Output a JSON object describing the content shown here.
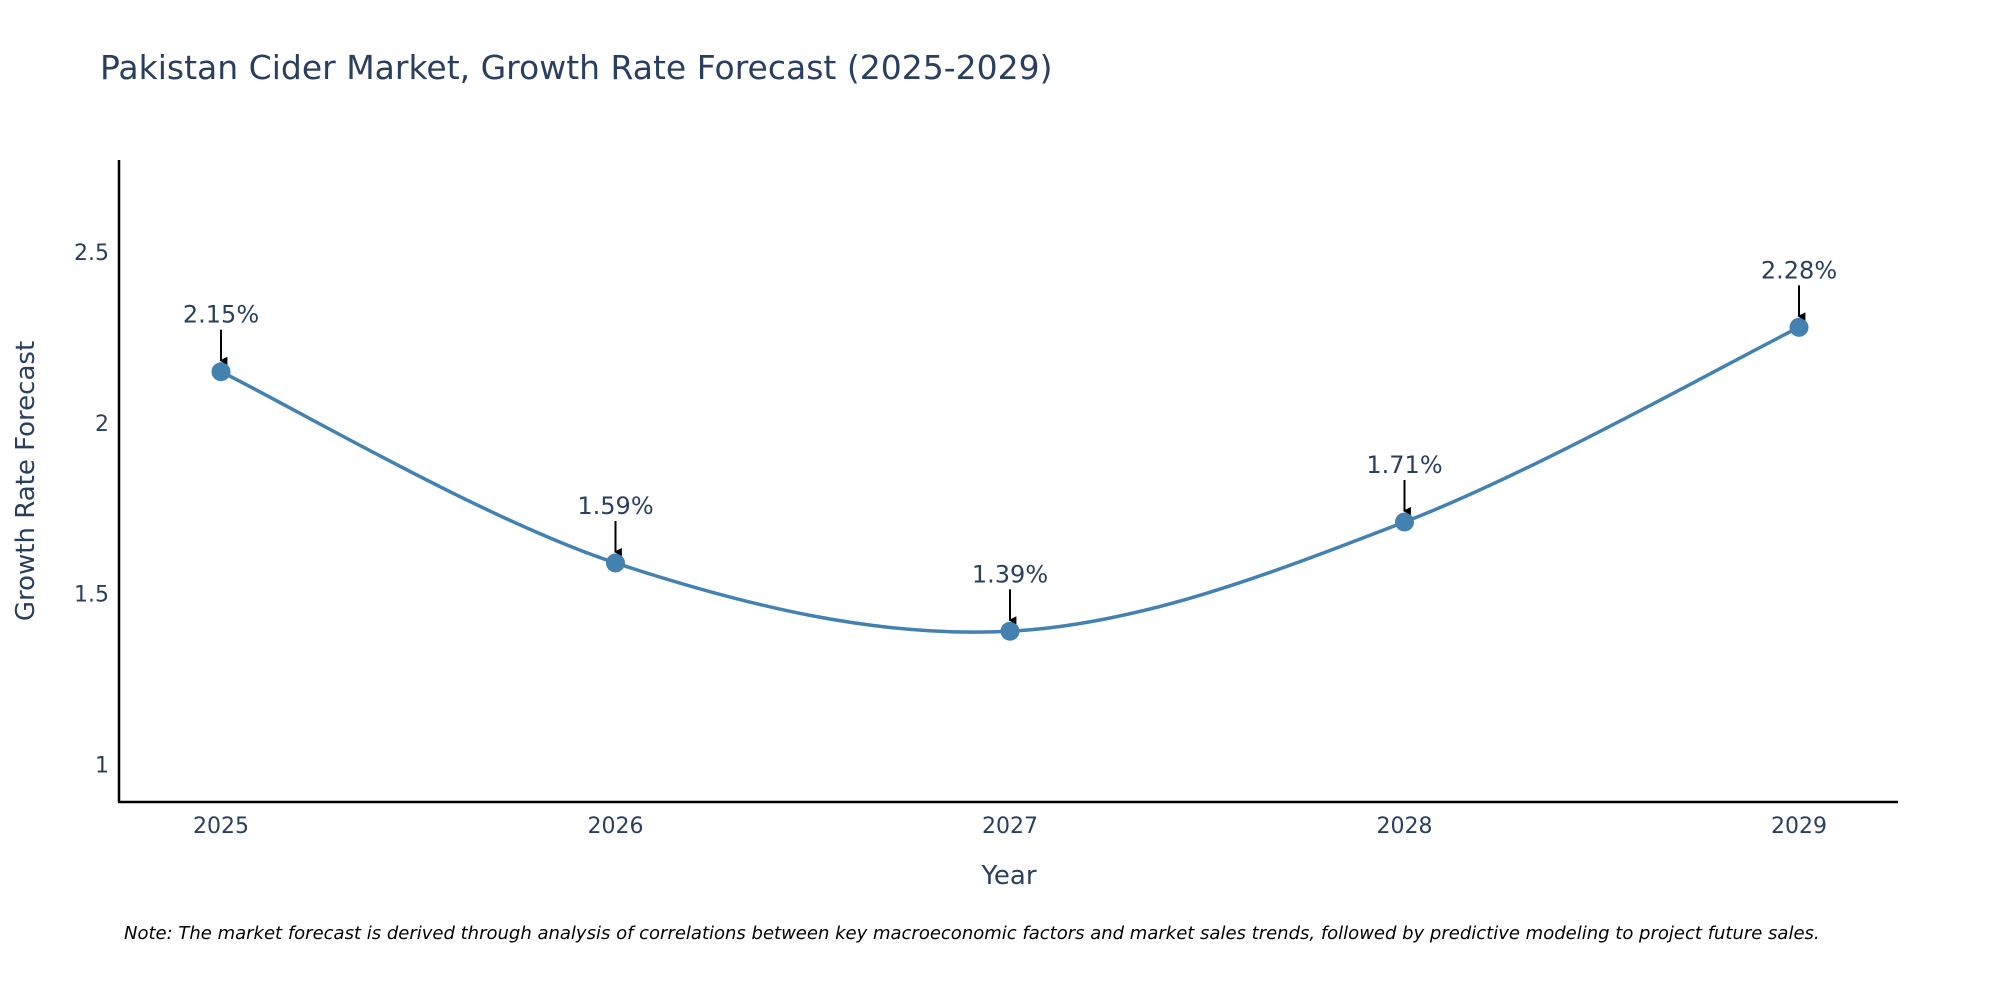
{
  "chart_data": {
    "type": "line",
    "title": "Pakistan Cider Market, Growth Rate Forecast (2025-2029)",
    "xlabel": "Year",
    "ylabel": "Growth Rate Forecast",
    "categories": [
      "2025",
      "2026",
      "2027",
      "2028",
      "2029"
    ],
    "series": [
      {
        "name": "Growth Rate Forecast",
        "values": [
          2.15,
          1.59,
          1.39,
          1.71,
          2.28
        ]
      }
    ],
    "data_labels": [
      "2.15%",
      "1.59%",
      "1.39%",
      "1.71%",
      "2.28%"
    ],
    "yticks": [
      1,
      1.5,
      2,
      2.5
    ],
    "ytick_labels": [
      "1",
      "1.5",
      "2",
      "2.5"
    ],
    "ylim": [
      0.89,
      2.77
    ],
    "grid": false,
    "line_color": "#4281b0",
    "note": "Note: The market forecast is derived through analysis of correlations between key macroeconomic factors and market sales trends, followed by predictive modeling to project future sales."
  }
}
